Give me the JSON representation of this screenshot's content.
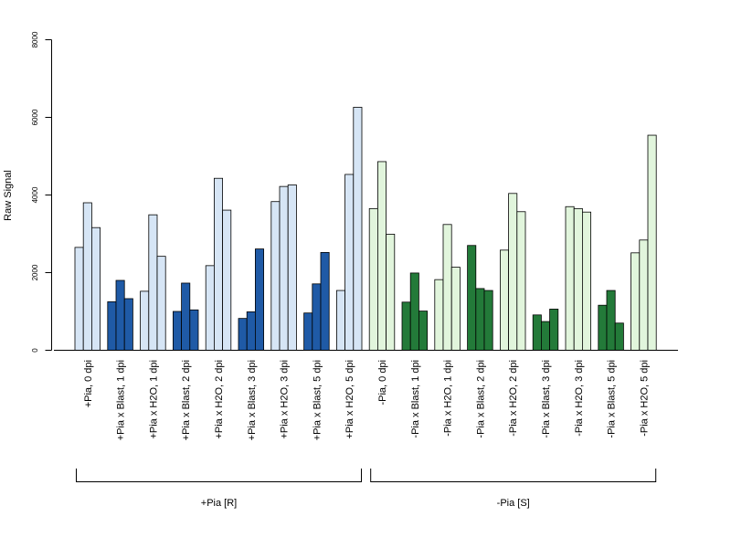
{
  "chart_data": {
    "type": "bar",
    "ylabel": "Raw Signal",
    "ylim": [
      0,
      8000
    ],
    "yticks": [
      0,
      2000,
      4000,
      6000,
      8000
    ],
    "grid": false,
    "categories": [
      "+Pia, 0 dpi",
      "+Pia x Blast, 1 dpi",
      "+Pia x H2O, 1 dpi",
      "+Pia x Blast, 2 dpi",
      "+Pia x H2O, 2 dpi",
      "+Pia x Blast, 3 dpi",
      "+Pia x H2O, 3 dpi",
      "+Pia x Blast, 5 dpi",
      "+Pia x H2O, 5 dpi",
      "-Pia, 0 dpi",
      "-Pia x Blast, 1 dpi",
      "-Pia x H2O, 1 dpi",
      "-Pia x Blast, 2 dpi",
      "-Pia x H2O, 2 dpi",
      "-Pia x Blast, 3 dpi",
      "-Pia x H2O, 3 dpi",
      "-Pia x Blast, 5 dpi",
      "-Pia x H2O, 5 dpi"
    ],
    "replicate_values": [
      [
        2650,
        3800,
        3160
      ],
      [
        1250,
        1800,
        1330
      ],
      [
        1520,
        3490,
        2420
      ],
      [
        1000,
        1730,
        1040
      ],
      [
        2180,
        4430,
        3610
      ],
      [
        820,
        990,
        2610
      ],
      [
        3830,
        4220,
        4260
      ],
      [
        960,
        1710,
        2520
      ],
      [
        1540,
        4530,
        6260
      ],
      [
        3650,
        4860,
        2990
      ],
      [
        1240,
        1990,
        1010
      ],
      [
        1820,
        3240,
        2140
      ],
      [
        2700,
        1590,
        1540
      ],
      [
        2580,
        4040,
        3570
      ],
      [
        910,
        740,
        1060
      ],
      [
        3700,
        3650,
        3560
      ],
      [
        1160,
        1540,
        700
      ],
      [
        2510,
        2840,
        5540
      ]
    ],
    "groups": [
      {
        "label": "+Pia [R]",
        "categories": [
          0,
          8
        ]
      },
      {
        "label": "-Pia [S]",
        "categories": [
          9,
          17
        ]
      }
    ],
    "colors": {
      "plus_blast": "#1f5aa6",
      "plus_h2o": "#d6e5f5",
      "minus_blast": "#237a39",
      "minus_h2o": "#e1f5dc",
      "stroke": "#000000"
    }
  }
}
